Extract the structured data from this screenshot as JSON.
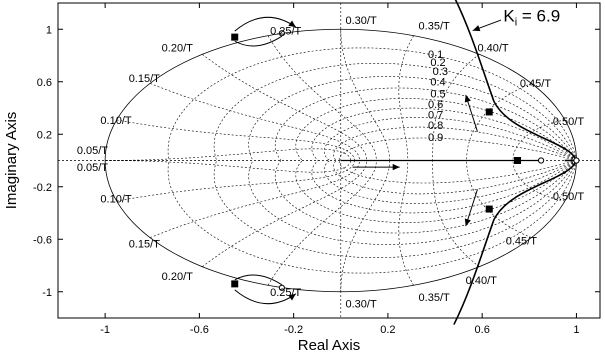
{
  "chart_data": {
    "type": "scatter",
    "title": "",
    "xlabel": "Real Axis",
    "ylabel": "Imaginary Axis",
    "xlim": [
      -1.2,
      1.1
    ],
    "ylim": [
      -1.2,
      1.2
    ],
    "xticks": [
      "-1",
      "-0.6",
      "-0.2",
      "0.2",
      "0.6",
      "1"
    ],
    "yticks": [
      "1",
      "0.6",
      "0.2",
      "-0.2",
      "-0.6",
      "-1"
    ],
    "grid": true,
    "unit_circle": true,
    "damping_ratios": [
      "0.1",
      "0.2",
      "0.3",
      "0.4",
      "0.5",
      "0.6",
      "0.7",
      "0.8",
      "0.9"
    ],
    "natural_frequencies": {
      "upper": [
        "0.50/T",
        "0.45/T",
        "0.40/T",
        "0.35/T",
        "0.30/T",
        "0.25/T",
        "0.20/T",
        "0.15/T",
        "0.10/T",
        "0.05/T"
      ],
      "lower": [
        "0.50/T",
        "0.45/T",
        "0.40/T",
        "0.35/T",
        "0.30/T",
        "0.25/T",
        "0.20/T",
        "0.15/T",
        "0.10/T",
        "0.05/T"
      ]
    },
    "root_locus": {
      "open_loop_poles": [
        {
          "re": 0.75,
          "im": 0
        },
        {
          "re": 0.85,
          "im": 0
        },
        {
          "re": 1.0,
          "im": 0
        }
      ],
      "branch_marks": [
        {
          "re": 0.63,
          "im": 0.37
        },
        {
          "re": 0.63,
          "im": -0.37
        }
      ],
      "compensator_marks": [
        {
          "re": -0.45,
          "im": 0.94
        },
        {
          "re": -0.45,
          "im": -0.94
        }
      ],
      "compensator_targets": [
        {
          "re": -0.25,
          "im": 0.97
        },
        {
          "re": -0.25,
          "im": -0.97
        }
      ],
      "real_axis_segment": [
        0,
        0.85
      ]
    },
    "annotations": [
      {
        "text_main": "K",
        "text_sub": "i",
        "text_rest": " = 6.9"
      }
    ]
  }
}
